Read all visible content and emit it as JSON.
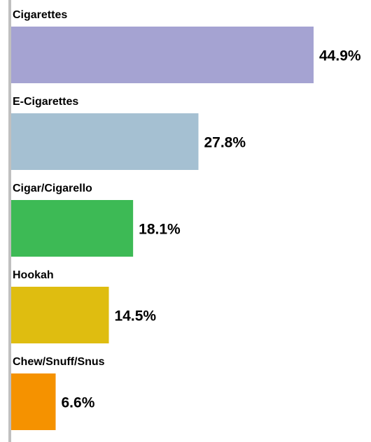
{
  "chart_data": {
    "type": "bar",
    "orientation": "horizontal",
    "categories": [
      "Cigarettes",
      "E-Cigarettes",
      "Cigar/Cigarello",
      "Hookah",
      "Chew/Snuff/Snus"
    ],
    "values": [
      44.9,
      27.8,
      18.1,
      14.5,
      6.6
    ],
    "value_labels": [
      "44.9%",
      "27.8%",
      "18.1%",
      "14.5%",
      "6.6%"
    ],
    "colors": [
      "#a5a3d2",
      "#a5c0d2",
      "#3dba55",
      "#dfbd10",
      "#f59200"
    ],
    "axis_color": "#c0c0c0",
    "title": "",
    "xlabel": "",
    "ylabel": "",
    "xlim": [
      0,
      44.9
    ],
    "grid": false,
    "legend": "none"
  }
}
